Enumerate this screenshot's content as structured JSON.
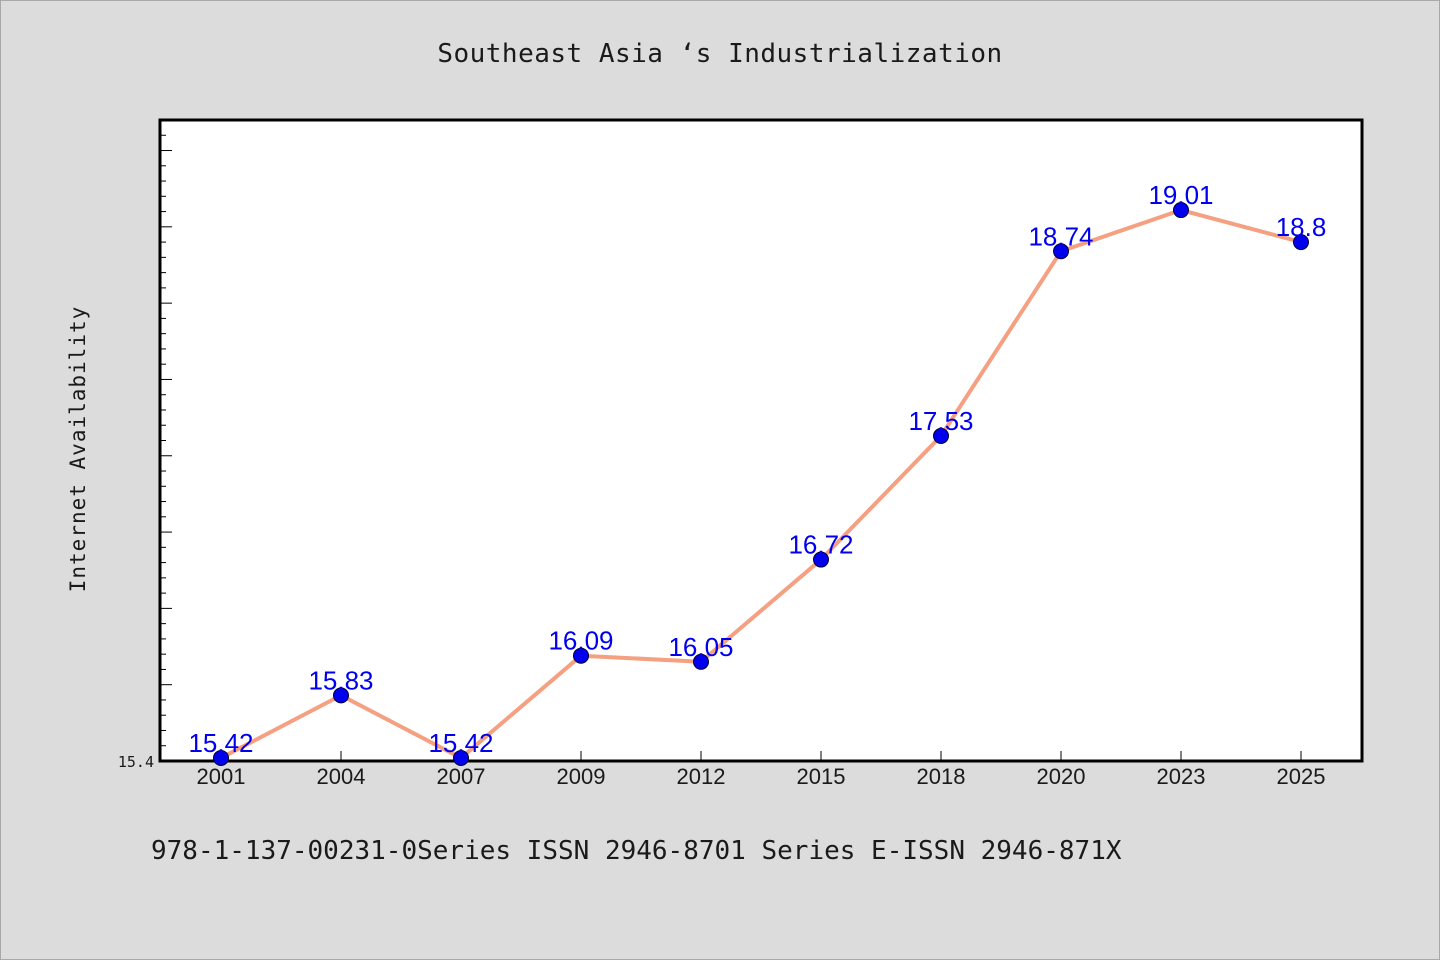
{
  "chart_data": {
    "type": "line",
    "title": "Southeast Asia ‘s Industrialization",
    "xlabel": "",
    "ylabel": "Internet Availability",
    "categories": [
      "2001",
      "2004",
      "2007",
      "2009",
      "2012",
      "2015",
      "2018",
      "2020",
      "2023",
      "2025"
    ],
    "values": [
      15.42,
      15.83,
      15.42,
      16.09,
      16.05,
      16.72,
      17.53,
      18.74,
      19.01,
      18.8
    ],
    "data_labels": [
      "15.42",
      "15.83",
      "15.42",
      "16.09",
      "16.05",
      "16.72",
      "17.53",
      "18.74",
      "19.01",
      "18.8"
    ],
    "ytick_labels": [
      "15.4"
    ],
    "ylim": [
      15.4,
      19.6
    ],
    "grid": false,
    "legend": "none",
    "colors": {
      "line": "#f4a081",
      "marker": "#0000ee",
      "label": "#0000ee",
      "background": "#dcdcdc",
      "plot_background": "#ffffff"
    }
  },
  "footer": {
    "text": "978-1-137-00231-0Series ISSN 2946-8701 Series E-ISSN 2946-871X"
  }
}
